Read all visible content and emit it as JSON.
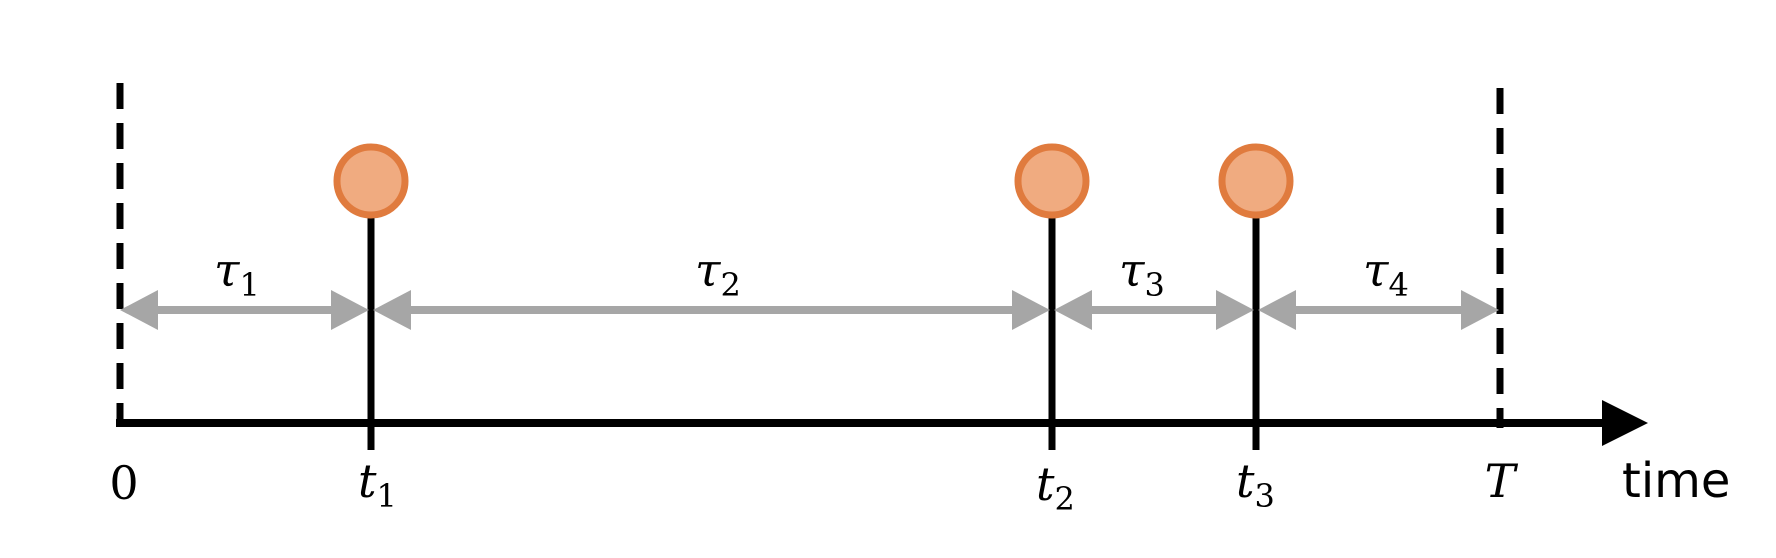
{
  "colors": {
    "axis": "#000000",
    "interval_arrow": "#a6a6a6",
    "event_fill": "#f0ab80",
    "event_stroke": "#e07b3e"
  },
  "axis_label": "time",
  "origin_label": "0",
  "end_label": "T",
  "events": [
    {
      "base": "t",
      "sub": "1"
    },
    {
      "base": "t",
      "sub": "2"
    },
    {
      "base": "t",
      "sub": "3"
    }
  ],
  "intervals": [
    {
      "base": "τ",
      "sub": "1"
    },
    {
      "base": "τ",
      "sub": "2"
    },
    {
      "base": "τ",
      "sub": "3"
    },
    {
      "base": "τ",
      "sub": "4"
    }
  ]
}
